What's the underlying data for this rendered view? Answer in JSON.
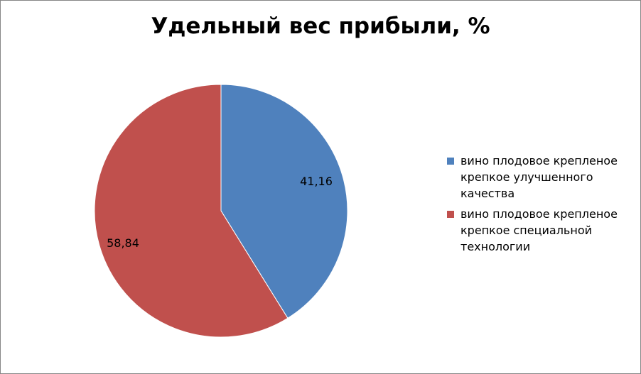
{
  "chart_data": {
    "type": "pie",
    "title": "Удельный вес прибыли, %",
    "series": [
      {
        "name": "вино плодовое крепленое крепкое улучшенного качества",
        "value": 41.16,
        "label": "41,16",
        "color": "#4F81BD"
      },
      {
        "name": "вино плодовое крепленое крепкое специальной технологии",
        "value": 58.84,
        "label": "58,84",
        "color": "#C0504D"
      }
    ],
    "legend_position": "right"
  }
}
